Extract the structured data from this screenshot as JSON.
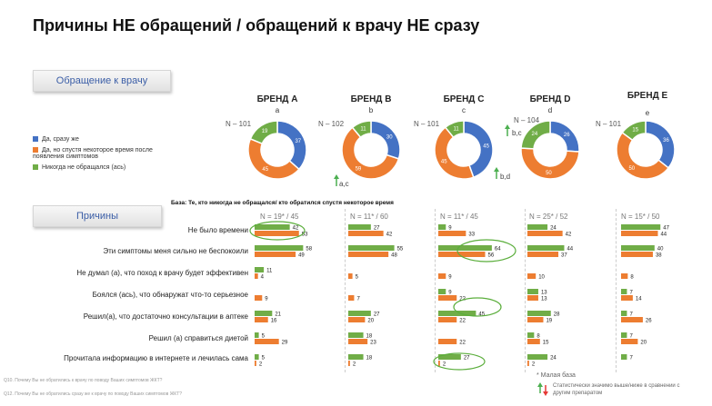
{
  "title": "Причины НЕ обращений / обращений к врачу НЕ сразу",
  "tab_visit": "Обращение  к врачу",
  "tab_reasons": "Причины",
  "legend": [
    {
      "label": "Да, сразу же",
      "color": "#4472C4"
    },
    {
      "label": "Да, но спустя некоторое время после появления симптомов",
      "color": "#ED7D31"
    },
    {
      "label": "Никогда не обращался (ась)",
      "color": "#70AD47"
    }
  ],
  "brands": [
    {
      "name": "БРЕНД А",
      "letter": "a",
      "n": "N – 101",
      "sig": ""
    },
    {
      "name": "БРЕНД В",
      "letter": "b",
      "n": "N – 102",
      "sig": "a,c"
    },
    {
      "name": "БРЕНД С",
      "letter": "c",
      "n": "N – 101",
      "sig": "b,d"
    },
    {
      "name": "БРЕНД D",
      "letter": "d",
      "n": "N – 104",
      "sig": "b,c"
    },
    {
      "name": "БРЕНД Е",
      "letter": "e",
      "n": "N – 101",
      "sig": ""
    }
  ],
  "base_note": "База: Те, кто никогда не обращался/ кто обратился спустя некоторое время",
  "reason_columns": [
    "N = 19* / 45",
    "N = 11* / 60",
    "N = 11* / 45",
    "N = 25* / 52",
    "N = 15* / 50"
  ],
  "reasons": [
    "Не было времени",
    "Эти симптомы меня сильно не беспокоили",
    "Не думал (а), что поход к врачу будет эффективен",
    "Боялся (ась), что обнаружат что-то серьезное",
    "Решил(а), что достаточно консультации в аптеке",
    "Решил (а) справиться диетой",
    "Прочитала информацию в интернете и лечилась сама"
  ],
  "footnotes": [
    "Q10. Почему Вы не обратились к врачу по поводу Ваших симптомов ЖКТ?",
    "Q12. Почему Вы не обратились сразу же к врачу по поводу Ваших симптомов ЖКТ?"
  ],
  "small_base_note": "* Малая база",
  "stat_note": "Статистически значимо выше/ниже в сравнении с другим препаратом",
  "chart_data": [
    {
      "type": "pie",
      "title": "Обращение к врачу",
      "categories": [
        "Да, сразу же",
        "Да, но спустя некоторое время после появления симптомов",
        "Никогда не обращался (ась)"
      ],
      "series": [
        {
          "name": "БРЕНД А",
          "values": [
            37,
            45,
            19
          ]
        },
        {
          "name": "БРЕНД В",
          "values": [
            30,
            59,
            11
          ]
        },
        {
          "name": "БРЕНД С",
          "values": [
            45,
            45,
            11
          ]
        },
        {
          "name": "БРЕНД D",
          "values": [
            26,
            50,
            24
          ]
        },
        {
          "name": "БРЕНД Е",
          "values": [
            36,
            50,
            15
          ]
        }
      ]
    },
    {
      "type": "bar",
      "title": "Причины",
      "categories": [
        "Не было времени",
        "Эти симптомы меня сильно не беспокоили",
        "Не думал (а), что поход к врачу будет эффективен",
        "Боялся (ась), что обнаружат что-то серьезное",
        "Решил(а), что достаточно консультации в аптеке",
        "Решил (а) справиться диетой",
        "Прочитала информацию в интернете и лечилась сама"
      ],
      "groups": [
        {
          "green": [
            42,
            58,
            11,
            0,
            21,
            5,
            5
          ],
          "orange": [
            53,
            49,
            4,
            9,
            16,
            29,
            2
          ]
        },
        {
          "green": [
            27,
            55,
            0,
            0,
            27,
            18,
            18
          ],
          "orange": [
            42,
            48,
            5,
            7,
            20,
            23,
            2
          ]
        },
        {
          "green": [
            9,
            64,
            0,
            9,
            45,
            0,
            27
          ],
          "orange": [
            33,
            56,
            9,
            22,
            22,
            22,
            2
          ]
        },
        {
          "green": [
            24,
            44,
            0,
            13,
            28,
            8,
            24
          ],
          "orange": [
            42,
            37,
            10,
            13,
            19,
            15,
            2
          ]
        },
        {
          "green": [
            47,
            40,
            0,
            7,
            7,
            7,
            7
          ],
          "orange": [
            44,
            38,
            8,
            14,
            26,
            20,
            0
          ]
        }
      ]
    }
  ]
}
